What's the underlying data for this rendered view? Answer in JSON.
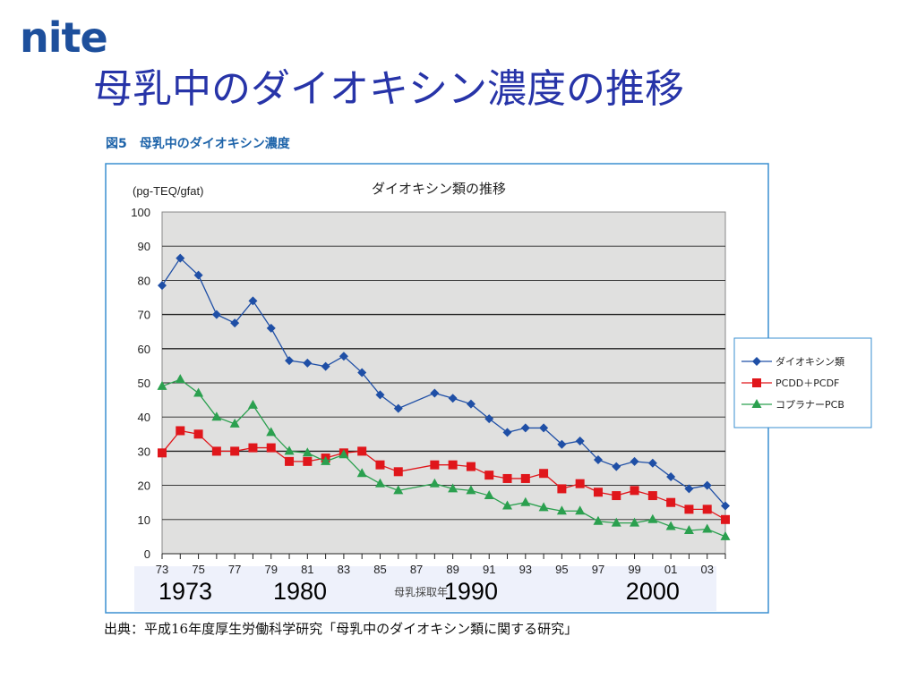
{
  "logo_text": "nite",
  "slide_title": "母乳中のダイオキシン濃度の推移",
  "figure_caption": "図5　母乳中のダイオキシン濃度",
  "source_note": "出典：平成16年度厚生労働科学研究「母乳中のダイオキシン類に関する研究」",
  "chart_data": {
    "type": "line",
    "title": "ダイオキシン類の推移",
    "ylabel": "(pg-TEQ/gfat)",
    "xlabel": "母乳採取年",
    "ylim": [
      0,
      100
    ],
    "yticks": [
      0,
      10,
      20,
      30,
      40,
      50,
      60,
      70,
      80,
      90,
      100
    ],
    "x": [
      73,
      74,
      75,
      76,
      77,
      78,
      79,
      80,
      81,
      82,
      83,
      84,
      85,
      86,
      88,
      89,
      90,
      91,
      92,
      93,
      94,
      95,
      96,
      97,
      98,
      99,
      100,
      101,
      102,
      103,
      104
    ],
    "xtick_labels": [
      "73",
      "75",
      "77",
      "79",
      "81",
      "83",
      "85",
      "87",
      "89",
      "91",
      "93",
      "95",
      "97",
      "99",
      "01",
      "03"
    ],
    "decade_labels": [
      "1973",
      "1980",
      "1990",
      "2000"
    ],
    "grid": true,
    "legend_position": "right",
    "series": [
      {
        "name": "ダイオキシン類",
        "color": "#1f4fa6",
        "marker": "diamond",
        "values": [
          78.5,
          86.5,
          81.5,
          70,
          67.5,
          74,
          66,
          56.5,
          55.8,
          54.8,
          57.8,
          53,
          46.5,
          42.5,
          47,
          45.5,
          43.8,
          39.5,
          35.5,
          36.8,
          36.8,
          32,
          33,
          27.5,
          25.5,
          27,
          26.5,
          22.5,
          19,
          20,
          14
        ]
      },
      {
        "name": "PCDD＋PCDF",
        "color": "#e0161b",
        "marker": "square",
        "values": [
          29.5,
          36,
          35,
          30,
          30,
          31,
          31,
          27,
          27,
          28,
          29.5,
          30,
          26,
          24,
          26,
          26,
          25.5,
          23,
          22,
          22,
          23.5,
          19,
          20.5,
          18,
          17,
          18.5,
          17,
          15,
          13,
          13,
          10
        ]
      },
      {
        "name": "コプラナーPCB",
        "color": "#2ba04f",
        "marker": "triangle",
        "values": [
          49,
          51,
          47,
          40,
          38,
          43.5,
          35.5,
          30,
          29.5,
          27,
          29,
          23.5,
          20.5,
          18.5,
          20.5,
          19,
          18.5,
          17,
          14,
          15,
          13.5,
          12.5,
          12.5,
          9.5,
          9,
          9,
          10,
          8,
          6.8,
          7.2,
          5
        ]
      }
    ]
  }
}
